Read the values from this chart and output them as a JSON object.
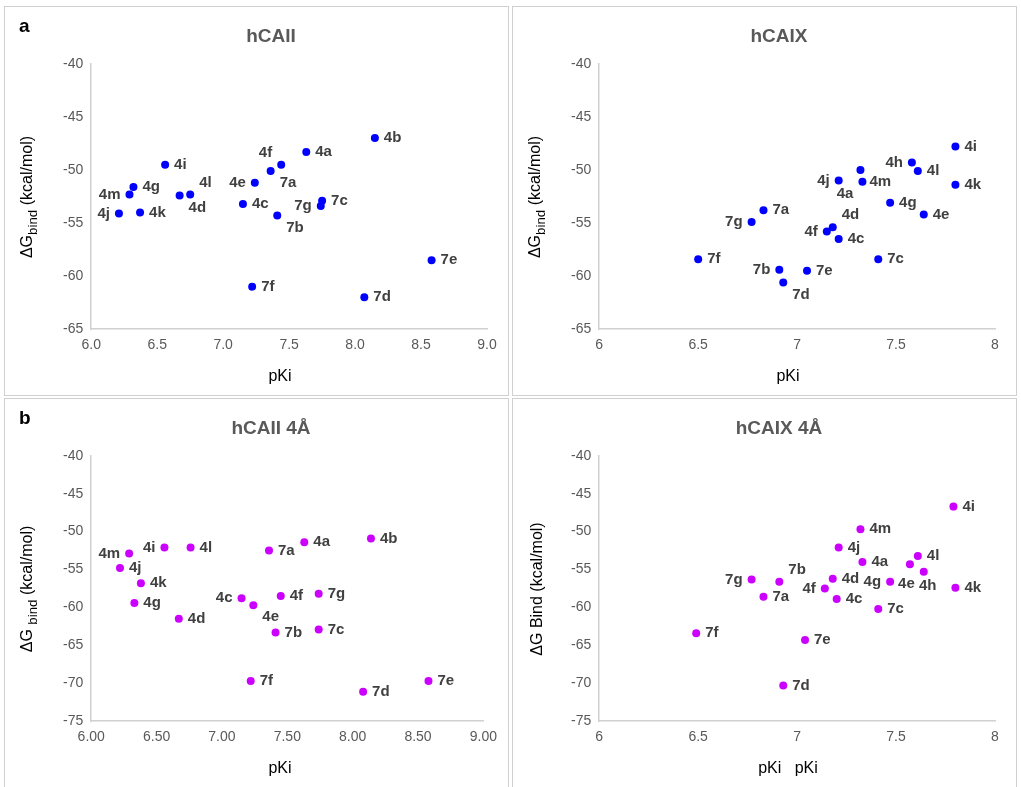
{
  "chart_data": [
    {
      "type": "scatter",
      "title": "hCAII",
      "xlabel": "pKi",
      "ylabel": "ΔG$_{bind}$ (kcal/mol)",
      "color": "#0000ff",
      "marker": "circle",
      "grid": false,
      "legend": false,
      "xlim": [
        6,
        9
      ],
      "xticks": [
        {
          "value": 6,
          "label": "6.0"
        },
        {
          "value": 6.5,
          "label": "6.5"
        },
        {
          "value": 7,
          "label": "7.0"
        },
        {
          "value": 7.5,
          "label": "7.5"
        },
        {
          "value": 8,
          "label": "8.0"
        },
        {
          "value": 8.5,
          "label": "8.5"
        },
        {
          "value": 9,
          "label": "9.0"
        }
      ],
      "ylim": [
        -65,
        -40
      ],
      "yticks": [
        -65,
        -60,
        -55,
        -50,
        -45,
        -40
      ],
      "x": [
        6.56,
        6.32,
        6.29,
        6.21,
        6.37,
        6.67,
        6.75,
        7.15,
        7.24,
        7.36,
        7.44,
        7.63,
        8.15,
        7.75,
        7.74,
        7.41,
        7.22,
        8.07,
        8.58
      ],
      "values": [
        -49.5,
        -51.6,
        -52.3,
        -54.1,
        -54.0,
        -52.4,
        -52.3,
        -53.2,
        -51.2,
        -50.1,
        -49.5,
        -48.3,
        -47.0,
        -52.9,
        -53.4,
        -54.3,
        -61.0,
        -62.0,
        -58.5
      ],
      "annotations": [
        "a",
        {
          "text": "4i",
          "x": 6.56,
          "y": -49.5
        },
        {
          "text": "4g",
          "x": 6.32,
          "y": -51.6
        },
        {
          "text": "4m",
          "x": 6.29,
          "y": -52.3
        },
        {
          "text": "4j",
          "x": 6.21,
          "y": -54.1
        },
        {
          "text": "4k",
          "x": 6.37,
          "y": -54.0
        },
        {
          "text": "4d",
          "x": 6.67,
          "y": -52.4
        },
        {
          "text": "4l",
          "x": 6.75,
          "y": -52.3
        },
        {
          "text": "4c",
          "x": 7.15,
          "y": -53.2
        },
        {
          "text": "4e",
          "x": 7.24,
          "y": -51.2
        },
        {
          "text": "7a",
          "x": 7.36,
          "y": -50.1
        },
        {
          "text": "4f",
          "x": 7.44,
          "y": -49.5
        },
        {
          "text": "4a",
          "x": 7.63,
          "y": -48.3
        },
        {
          "text": "4b",
          "x": 8.15,
          "y": -47.0
        },
        {
          "text": "7c",
          "x": 7.75,
          "y": -52.9
        },
        {
          "text": "7g",
          "x": 7.74,
          "y": -53.4
        },
        {
          "text": "7b",
          "x": 7.41,
          "y": -54.3
        },
        {
          "text": "7f",
          "x": 7.22,
          "y": -61.0
        },
        {
          "text": "7d",
          "x": 8.07,
          "y": -62.0
        },
        {
          "text": "7e",
          "x": 8.58,
          "y": -58.5
        }
      ]
    },
    {
      "type": "scatter",
      "title": "hCAIX",
      "xlabel": "pKi",
      "ylabel": "ΔG$_{bind}$ (kcal/mol)",
      "color": "#0000ff",
      "marker": "circle",
      "grid": false,
      "legend": false,
      "xlim": [
        6,
        8
      ],
      "xticks": [
        6,
        6.5,
        7,
        7.5,
        8
      ],
      "ylim": [
        -65,
        -40
      ],
      "yticks": [
        -65,
        -60,
        -55,
        -50,
        -45,
        -40
      ],
      "x": [
        7.8,
        7.58,
        7.61,
        7.32,
        7.21,
        7.33,
        7.8,
        7.47,
        7.64,
        6.83,
        6.77,
        7.18,
        7.15,
        7.21,
        7.41,
        6.5,
        6.91,
        7.05,
        6.93
      ],
      "values": [
        -47.8,
        -49.3,
        -50.1,
        -50.0,
        -51.0,
        -51.1,
        -51.4,
        -53.1,
        -54.2,
        -53.8,
        -54.9,
        -55.4,
        -55.8,
        -56.5,
        -58.4,
        -58.4,
        -59.4,
        -59.5,
        -60.6
      ],
      "annotations": [
        {
          "text": "4i",
          "x": 7.8,
          "y": -47.8
        },
        {
          "text": "4h",
          "x": 7.58,
          "y": -49.3
        },
        {
          "text": "4l",
          "x": 7.61,
          "y": -50.1
        },
        {
          "text": "4m",
          "x": 7.32,
          "y": -50.0
        },
        {
          "text": "4j",
          "x": 7.21,
          "y": -51.0
        },
        {
          "text": "4a",
          "x": 7.33,
          "y": -51.1
        },
        {
          "text": "4k",
          "x": 7.8,
          "y": -51.4
        },
        {
          "text": "4g",
          "x": 7.47,
          "y": -53.1
        },
        {
          "text": "4e",
          "x": 7.64,
          "y": -54.2
        },
        {
          "text": "7a",
          "x": 6.83,
          "y": -53.8
        },
        {
          "text": "7g",
          "x": 6.77,
          "y": -54.9
        },
        {
          "text": "4d",
          "x": 7.18,
          "y": -55.4
        },
        {
          "text": "4f",
          "x": 7.15,
          "y": -55.8
        },
        {
          "text": "4c",
          "x": 7.21,
          "y": -56.5
        },
        {
          "text": "7c",
          "x": 7.41,
          "y": -58.4
        },
        {
          "text": "7f",
          "x": 6.5,
          "y": -58.4
        },
        {
          "text": "7b",
          "x": 6.91,
          "y": -59.4
        },
        {
          "text": "7e",
          "x": 7.05,
          "y": -59.5
        },
        {
          "text": "7d",
          "x": 6.93,
          "y": -60.6
        }
      ]
    },
    {
      "type": "scatter",
      "title": "hCAII 4Å",
      "xlabel": "pKi",
      "ylabel": "ΔG $_{bind}$ (kcal/mol)",
      "color": "#cc00ff",
      "marker": "circle",
      "grid": false,
      "legend": false,
      "xlim": [
        6,
        9
      ],
      "xticks": [
        {
          "value": 6,
          "label": "6.00"
        },
        {
          "value": 6.5,
          "label": "6.50"
        },
        {
          "value": 7,
          "label": "7.00"
        },
        {
          "value": 7.5,
          "label": "7.50"
        },
        {
          "value": 8,
          "label": "8.00"
        },
        {
          "value": 8.5,
          "label": "8.50"
        },
        {
          "value": 9,
          "label": "9.00"
        }
      ],
      "ylim": [
        -75,
        -40
      ],
      "yticks": [
        -75,
        -70,
        -65,
        -60,
        -55,
        -50,
        -45,
        -40
      ],
      "x": [
        6.56,
        6.76,
        6.29,
        6.22,
        6.38,
        6.33,
        6.67,
        7.15,
        7.24,
        7.45,
        7.36,
        7.63,
        8.14,
        7.74,
        7.74,
        7.41,
        7.22,
        8.08,
        8.58
      ],
      "values": [
        -52.1,
        -52.1,
        -52.9,
        -54.8,
        -56.8,
        -59.4,
        -61.5,
        -58.8,
        -59.7,
        -58.5,
        -52.5,
        -51.4,
        -50.9,
        -58.2,
        -62.9,
        -63.3,
        -69.7,
        -71.1,
        -69.7
      ],
      "annotations": [
        "b",
        {
          "text": "4i",
          "x": 6.56,
          "y": -52.1
        },
        {
          "text": "4l",
          "x": 6.76,
          "y": -52.1
        },
        {
          "text": "4m",
          "x": 6.29,
          "y": -52.9
        },
        {
          "text": "4j",
          "x": 6.22,
          "y": -54.8
        },
        {
          "text": "4k",
          "x": 6.38,
          "y": -56.8
        },
        {
          "text": "4g",
          "x": 6.33,
          "y": -59.4
        },
        {
          "text": "4d",
          "x": 6.67,
          "y": -61.5
        },
        {
          "text": "4c",
          "x": 7.15,
          "y": -58.8
        },
        {
          "text": "4e",
          "x": 7.24,
          "y": -59.7
        },
        {
          "text": "4f",
          "x": 7.45,
          "y": -58.5
        },
        {
          "text": "7a",
          "x": 7.36,
          "y": -52.5
        },
        {
          "text": "4a",
          "x": 7.63,
          "y": -51.4
        },
        {
          "text": "4b",
          "x": 8.14,
          "y": -50.9
        },
        {
          "text": "7g",
          "x": 7.74,
          "y": -58.2
        },
        {
          "text": "7c",
          "x": 7.74,
          "y": -62.9
        },
        {
          "text": "7b",
          "x": 7.41,
          "y": -63.3
        },
        {
          "text": "7f",
          "x": 7.22,
          "y": -69.7
        },
        {
          "text": "7d",
          "x": 8.08,
          "y": -71.1
        },
        {
          "text": "7e",
          "x": 8.58,
          "y": -69.7
        }
      ]
    },
    {
      "type": "scatter",
      "title": "hCAIX 4Å",
      "xlabel": "pKi   pKi",
      "ylabel": "ΔG Bind (kcal/mol)",
      "color": "#cc00ff",
      "marker": "circle",
      "grid": false,
      "legend": false,
      "xlim": [
        6,
        8
      ],
      "xticks": [
        6,
        6.5,
        7,
        7.5,
        8
      ],
      "ylim": [
        -75,
        -40
      ],
      "yticks": [
        -75,
        -70,
        -65,
        -60,
        -55,
        -50,
        -45,
        -40
      ],
      "x": [
        7.79,
        7.32,
        7.21,
        7.33,
        7.61,
        7.57,
        7.64,
        7.8,
        7.47,
        7.18,
        7.14,
        7.2,
        7.41,
        6.77,
        6.91,
        6.83,
        6.49,
        7.04,
        6.93
      ],
      "values": [
        -46.7,
        -49.7,
        -52.1,
        -54.0,
        -53.2,
        -54.3,
        -55.3,
        -57.4,
        -56.6,
        -56.2,
        -57.5,
        -58.9,
        -60.2,
        -56.3,
        -56.6,
        -58.6,
        -63.4,
        -64.3,
        -70.3
      ],
      "annotations": [
        {
          "text": "4i",
          "x": 7.79,
          "y": -46.7
        },
        {
          "text": "4m",
          "x": 7.32,
          "y": -49.7
        },
        {
          "text": "4j",
          "x": 7.21,
          "y": -52.1
        },
        {
          "text": "4a",
          "x": 7.33,
          "y": -54.0
        },
        {
          "text": "4l",
          "x": 7.61,
          "y": -53.2
        },
        {
          "text": "4h",
          "x": 7.57,
          "y": -54.3
        },
        {
          "text": "4e",
          "x": 7.64,
          "y": -55.3
        },
        {
          "text": "4k",
          "x": 7.8,
          "y": -57.4
        },
        {
          "text": "4g",
          "x": 7.47,
          "y": -56.6
        },
        {
          "text": "4d",
          "x": 7.18,
          "y": -56.2
        },
        {
          "text": "4f",
          "x": 7.14,
          "y": -57.5
        },
        {
          "text": "4c",
          "x": 7.2,
          "y": -58.9
        },
        {
          "text": "7c",
          "x": 7.41,
          "y": -60.2
        },
        {
          "text": "7g",
          "x": 6.77,
          "y": -56.3
        },
        {
          "text": "7b",
          "x": 6.91,
          "y": -56.6
        },
        {
          "text": "7a",
          "x": 6.83,
          "y": -58.6
        },
        {
          "text": "7f",
          "x": 6.49,
          "y": -63.4
        },
        {
          "text": "7e",
          "x": 7.04,
          "y": -64.3
        },
        {
          "text": "7d",
          "x": 6.93,
          "y": -70.3
        }
      ]
    }
  ]
}
